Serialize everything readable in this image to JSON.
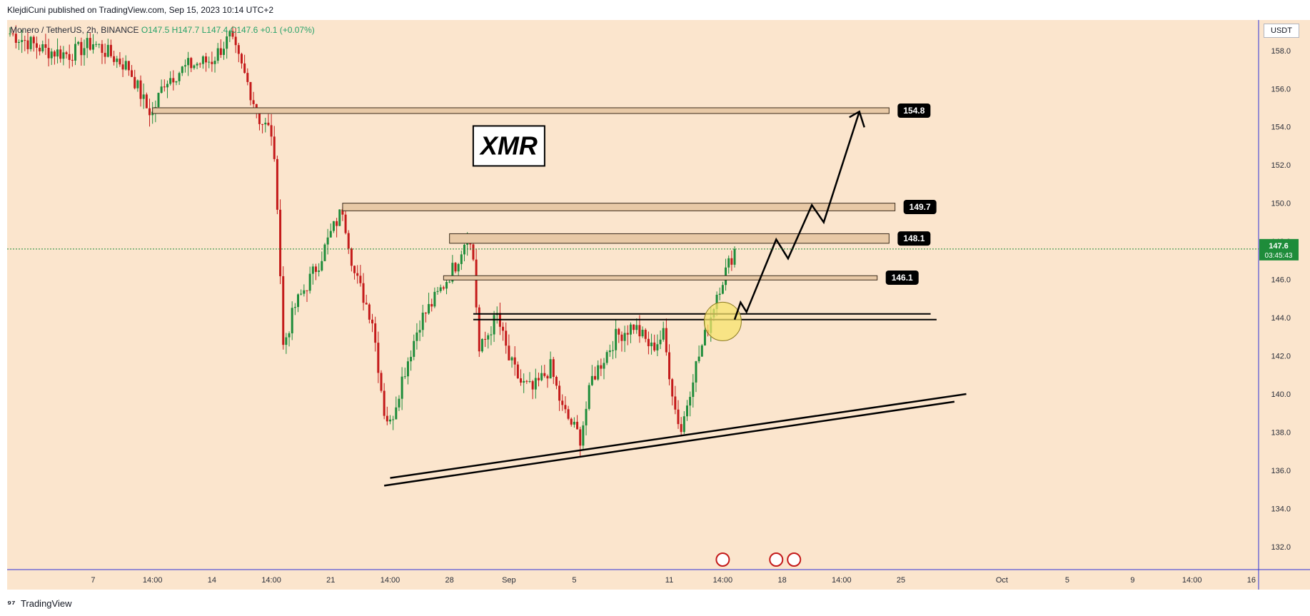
{
  "header": {
    "published_text": "KlejdiCuni published on TradingView.com, Sep 15, 2023 10:14 UTC+2"
  },
  "symbol": {
    "name": "Monero / TetherUS",
    "timeframe": "2h",
    "exchange": "BINANCE",
    "ohlc": "O147.5 H147.7 L147.4 C147.6 +0.1 (+0.07%)"
  },
  "currency_label": "USDT",
  "footer": {
    "logo": "TradingView"
  },
  "colors": {
    "background": "#fbe5cd",
    "up_candle": "#1e8c3a",
    "down_candle": "#c41a1a",
    "axis": "#2e31d6",
    "zone_fill": "#e8c9a6",
    "zone_stroke": "#3a2a1a",
    "price_badge": "#1e8c3a",
    "drawing": "#000000",
    "highlight": "#f7e36c"
  },
  "chart_data": {
    "type": "candlestick",
    "title": "XMR",
    "ylim": [
      130.8,
      159.6
    ],
    "y_ticks": [
      132.0,
      134.0,
      136.0,
      138.0,
      140.0,
      142.0,
      144.0,
      146.0,
      148.0,
      150.0,
      152.0,
      154.0,
      156.0,
      158.0
    ],
    "x_ticks": [
      {
        "label": "7",
        "bar": 14
      },
      {
        "label": "14:00",
        "bar": 24
      },
      {
        "label": "14",
        "bar": 34
      },
      {
        "label": "14:00",
        "bar": 44
      },
      {
        "label": "21",
        "bar": 54
      },
      {
        "label": "14:00",
        "bar": 64
      },
      {
        "label": "28",
        "bar": 74
      },
      {
        "label": "Sep",
        "bar": 84
      },
      {
        "label": "5",
        "bar": 95
      },
      {
        "label": "11",
        "bar": 111
      },
      {
        "label": "14:00",
        "bar": 120
      },
      {
        "label": "18",
        "bar": 130
      },
      {
        "label": "14:00",
        "bar": 140
      },
      {
        "label": "25",
        "bar": 150
      },
      {
        "label": "Oct",
        "bar": 167
      },
      {
        "label": "5",
        "bar": 178
      },
      {
        "label": "9",
        "bar": 189
      },
      {
        "label": "14:00",
        "bar": 199
      },
      {
        "label": "16",
        "bar": 209
      }
    ],
    "candles_close_path": [
      [
        0,
        158.9
      ],
      [
        6,
        158.0
      ],
      [
        10,
        157.8
      ],
      [
        14,
        158.4
      ],
      [
        20,
        157.1
      ],
      [
        23,
        155.0
      ],
      [
        24,
        154.7
      ],
      [
        26,
        156.4
      ],
      [
        30,
        157.2
      ],
      [
        34,
        157.5
      ],
      [
        37,
        158.7
      ],
      [
        40,
        156.3
      ],
      [
        42,
        154.4
      ],
      [
        44,
        153.7
      ],
      [
        45,
        150.1
      ],
      [
        46,
        142.5
      ],
      [
        48,
        144.6
      ],
      [
        52,
        146.9
      ],
      [
        54,
        148.4
      ],
      [
        56,
        149.7
      ],
      [
        58,
        146.3
      ],
      [
        61,
        143.9
      ],
      [
        63,
        139.1
      ],
      [
        64,
        138.4
      ],
      [
        66,
        140.8
      ],
      [
        69,
        143.8
      ],
      [
        72,
        145.2
      ],
      [
        75,
        146.8
      ],
      [
        77,
        148.4
      ],
      [
        78,
        147.1
      ],
      [
        79,
        142.2
      ],
      [
        82,
        144.1
      ],
      [
        84,
        141.8
      ],
      [
        86,
        140.6
      ],
      [
        88,
        140.2
      ],
      [
        91,
        141.4
      ],
      [
        93,
        139.2
      ],
      [
        96,
        137.7
      ],
      [
        98,
        140.8
      ],
      [
        102,
        143.0
      ],
      [
        105,
        143.6
      ],
      [
        108,
        142.4
      ],
      [
        110,
        143.1
      ],
      [
        112,
        139.2
      ],
      [
        113,
        138.1
      ],
      [
        115,
        141.0
      ],
      [
        117,
        143.0
      ],
      [
        118,
        144.1
      ],
      [
        119,
        145.3
      ],
      [
        121,
        146.8
      ],
      [
        122,
        147.6
      ]
    ],
    "last_price": "147.6",
    "countdown": "03:45:43",
    "zones": [
      {
        "label": "154.8",
        "low": 154.7,
        "high": 155.0,
        "bar_from": 24,
        "bar_to": 148
      },
      {
        "label": "149.7",
        "low": 149.6,
        "high": 150.0,
        "bar_from": 56,
        "bar_to": 149
      },
      {
        "label": "148.1",
        "low": 147.9,
        "high": 148.4,
        "bar_from": 74,
        "bar_to": 148
      },
      {
        "label": "146.1",
        "low": 146.0,
        "high": 146.2,
        "bar_from": 73,
        "bar_to": 146
      }
    ],
    "support_lines": [
      {
        "price": 144.2,
        "bar_from": 78,
        "bar_to": 155
      },
      {
        "price": 143.9,
        "bar_from": 78,
        "bar_to": 156
      }
    ],
    "trendlines": [
      {
        "points": [
          [
            64,
            135.6
          ],
          [
            161,
            140.0
          ]
        ]
      },
      {
        "points": [
          [
            63,
            135.2
          ],
          [
            159,
            139.6
          ]
        ]
      }
    ],
    "projection_path": [
      [
        122,
        143.9
      ],
      [
        123,
        144.8
      ],
      [
        124,
        144.3
      ],
      [
        129,
        148.1
      ],
      [
        131,
        147.1
      ],
      [
        135,
        149.9
      ],
      [
        137,
        149.0
      ],
      [
        143,
        154.8
      ]
    ],
    "highlight_circle": {
      "bar": 120,
      "price": 143.8
    }
  }
}
